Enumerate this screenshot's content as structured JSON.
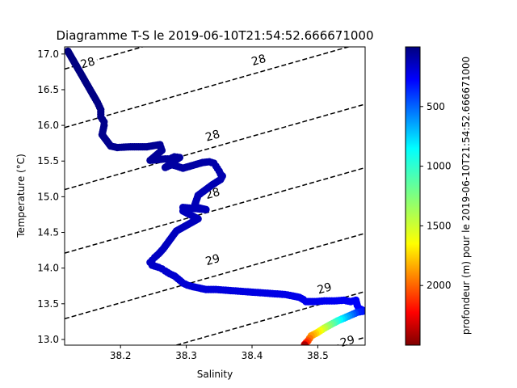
{
  "chart_data": {
    "type": "scatter",
    "title": "Diagramme T-S le 2019-06-10T21:54:52.666671000",
    "xlabel": "Salinity",
    "ylabel": "Temperature (°C)",
    "xlim": [
      38.115,
      38.572
    ],
    "ylim": [
      12.92,
      17.1
    ],
    "x_ticks": [
      38.2,
      38.3,
      38.4,
      38.5
    ],
    "x_tick_labels": [
      "38.2",
      "38.3",
      "38.4",
      "38.5"
    ],
    "y_ticks": [
      13.0,
      13.5,
      14.0,
      14.5,
      15.0,
      15.5,
      16.0,
      16.5,
      17.0
    ],
    "y_tick_labels": [
      "13.0",
      "13.5",
      "14.0",
      "14.5",
      "15.0",
      "15.5",
      "16.0",
      "16.5",
      "17.0"
    ],
    "grid": false,
    "colorbar": {
      "label": "profondeur (m) pour le 2019-06-10T21:54:52.666671000",
      "range": [
        0,
        2500
      ],
      "inverted": true,
      "colormap": "jet",
      "ticks": [
        500,
        1000,
        1500,
        2000
      ],
      "tick_labels": [
        "500",
        "1000",
        "1500",
        "2000"
      ]
    },
    "density_contours": [
      {
        "label": "28",
        "label_pos": [
          38.15,
          16.88
        ],
        "slope": 2.62,
        "x0": 38.115,
        "y0": 16.79
      },
      {
        "label": "28",
        "label_pos": [
          38.41,
          16.92
        ],
        "slope": 2.62,
        "x0": 38.115,
        "y0": 15.97
      },
      {
        "label": "28",
        "label_pos": [
          38.34,
          15.86
        ],
        "slope": 2.62,
        "x0": 38.115,
        "y0": 15.1
      },
      {
        "label": "28",
        "label_pos": [
          38.34,
          15.05
        ],
        "slope": 2.62,
        "x0": 38.115,
        "y0": 14.21
      },
      {
        "label": "29",
        "label_pos": [
          38.34,
          14.12
        ],
        "slope": 2.62,
        "x0": 38.115,
        "y0": 13.29
      },
      {
        "label": "29",
        "label_pos": [
          38.51,
          13.72
        ],
        "slope": 2.62,
        "x0": 38.285,
        "y0": 12.92
      },
      {
        "label": "29",
        "label_pos": [
          38.545,
          12.98
        ],
        "slope": 2.62,
        "x0": 38.53,
        "y0": 12.92
      }
    ],
    "profile": {
      "name": "",
      "points": [
        [
          38.12,
          17.04,
          0
        ],
        [
          38.14,
          16.72,
          4
        ],
        [
          38.155,
          16.48,
          8
        ],
        [
          38.165,
          16.32,
          12
        ],
        [
          38.17,
          16.22,
          16
        ],
        [
          38.17,
          16.12,
          20
        ],
        [
          38.175,
          16.05,
          24
        ],
        [
          38.175,
          16.0,
          28
        ],
        [
          38.172,
          15.87,
          32
        ],
        [
          38.185,
          15.71,
          36
        ],
        [
          38.195,
          15.69,
          40
        ],
        [
          38.215,
          15.7,
          44
        ],
        [
          38.24,
          15.7,
          48
        ],
        [
          38.26,
          15.73,
          52
        ],
        [
          38.263,
          15.65,
          56
        ],
        [
          38.245,
          15.51,
          60
        ],
        [
          38.268,
          15.53,
          64
        ],
        [
          38.275,
          15.53,
          68
        ],
        [
          38.282,
          15.56,
          72
        ],
        [
          38.29,
          15.55,
          76
        ],
        [
          38.268,
          15.41,
          80
        ],
        [
          38.278,
          15.45,
          84
        ],
        [
          38.295,
          15.4,
          88
        ],
        [
          38.325,
          15.48,
          92
        ],
        [
          38.335,
          15.49,
          96
        ],
        [
          38.342,
          15.47,
          100
        ],
        [
          38.345,
          15.43,
          104
        ],
        [
          38.35,
          15.36,
          108
        ],
        [
          38.352,
          15.32,
          112
        ],
        [
          38.355,
          15.29,
          116
        ],
        [
          38.352,
          15.24,
          120
        ],
        [
          38.34,
          15.17,
          124
        ],
        [
          38.318,
          15.02,
          128
        ],
        [
          38.312,
          14.86,
          132
        ],
        [
          38.33,
          14.82,
          136
        ],
        [
          38.295,
          14.85,
          140
        ],
        [
          38.295,
          14.8,
          144
        ],
        [
          38.318,
          14.69,
          148
        ],
        [
          38.285,
          14.52,
          152
        ],
        [
          38.265,
          14.27,
          156
        ],
        [
          38.258,
          14.2,
          160
        ],
        [
          38.252,
          14.15,
          164
        ],
        [
          38.248,
          14.11,
          168
        ],
        [
          38.245,
          14.08,
          172
        ],
        [
          38.248,
          14.04,
          176
        ],
        [
          38.258,
          14.01,
          180
        ],
        [
          38.263,
          13.99,
          184
        ],
        [
          38.268,
          13.96,
          188
        ],
        [
          38.275,
          13.92,
          192
        ],
        [
          38.282,
          13.89,
          196
        ],
        [
          38.29,
          13.83,
          200
        ],
        [
          38.295,
          13.79,
          204
        ],
        [
          38.302,
          13.76,
          208
        ],
        [
          38.31,
          13.74,
          212
        ],
        [
          38.32,
          13.72,
          216
        ],
        [
          38.33,
          13.7,
          220
        ],
        [
          38.345,
          13.7,
          224
        ],
        [
          38.36,
          13.69,
          228
        ],
        [
          38.375,
          13.68,
          232
        ],
        [
          38.39,
          13.67,
          236
        ],
        [
          38.405,
          13.66,
          240
        ],
        [
          38.42,
          13.65,
          244
        ],
        [
          38.435,
          13.64,
          248
        ],
        [
          38.45,
          13.63,
          252
        ],
        [
          38.462,
          13.61,
          256
        ],
        [
          38.472,
          13.59,
          260
        ],
        [
          38.478,
          13.56,
          264
        ],
        [
          38.482,
          13.53,
          268
        ],
        [
          38.495,
          13.53,
          272
        ],
        [
          38.51,
          13.54,
          276
        ],
        [
          38.525,
          13.54,
          280
        ],
        [
          38.54,
          13.55,
          284
        ],
        [
          38.55,
          13.53,
          288
        ],
        [
          38.558,
          13.55,
          292
        ],
        [
          38.56,
          13.48,
          296
        ],
        [
          38.562,
          13.44,
          300
        ],
        [
          38.568,
          13.41,
          310
        ],
        [
          38.572,
          13.4,
          330
        ],
        [
          38.56,
          13.38,
          400
        ],
        [
          38.55,
          13.34,
          600
        ],
        [
          38.54,
          13.3,
          800
        ],
        [
          38.53,
          13.26,
          1000
        ],
        [
          38.52,
          13.21,
          1200
        ],
        [
          38.51,
          13.16,
          1400
        ],
        [
          38.5,
          13.1,
          1600
        ],
        [
          38.49,
          13.05,
          1800
        ],
        [
          38.485,
          12.98,
          2000
        ],
        [
          38.48,
          12.93,
          2200
        ],
        [
          38.48,
          12.92,
          2400
        ]
      ]
    }
  }
}
